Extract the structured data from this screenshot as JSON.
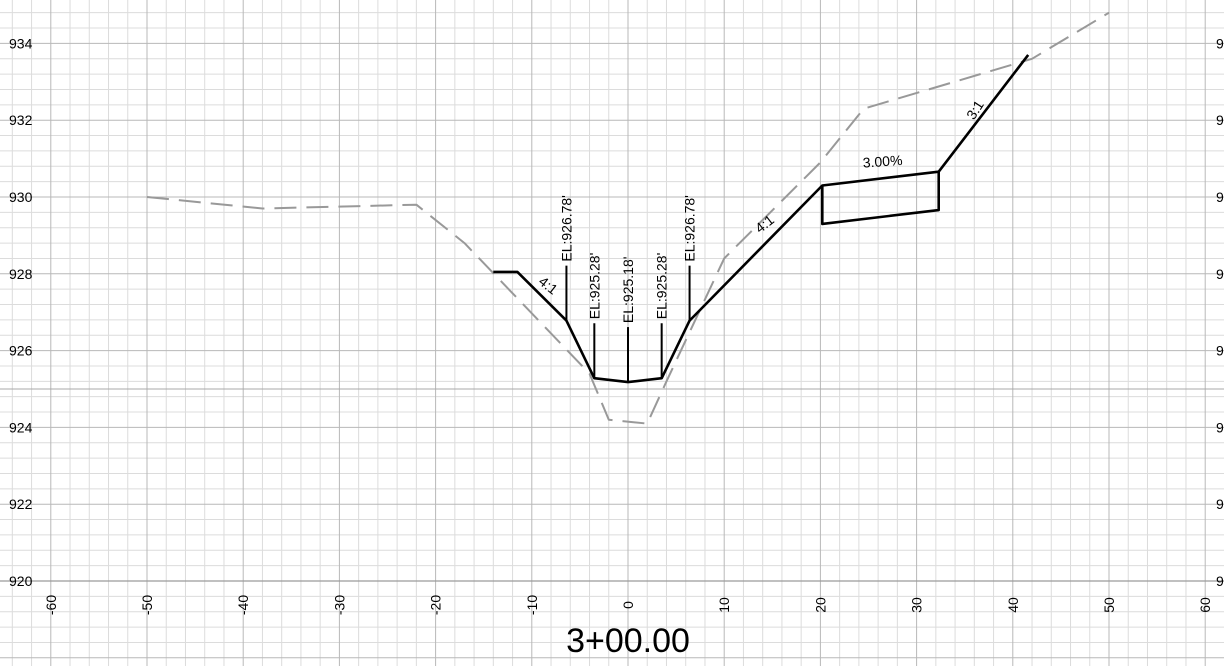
{
  "title": "3+00.00",
  "y_ticks": [
    "934",
    "932",
    "930",
    "928",
    "926",
    "924",
    "922",
    "920"
  ],
  "y_ticks_right_partial": [
    "9",
    "9",
    "9",
    "9",
    "9",
    "9",
    "9",
    "9"
  ],
  "x_ticks": [
    "-60",
    "-50",
    "-40",
    "-30",
    "-20",
    "-10",
    "0",
    "10",
    "20",
    "30",
    "40",
    "50",
    "60"
  ],
  "chart_data": {
    "type": "line",
    "xlim": [
      -60,
      60
    ],
    "ylim": [
      920,
      935
    ],
    "grid": true,
    "series": [
      {
        "line_style": "dashed",
        "color": "#999999",
        "points": [
          [
            -50,
            930
          ],
          [
            -38,
            929.7
          ],
          [
            -22,
            929.8
          ],
          [
            -17,
            928.8
          ],
          [
            -4,
            925.4
          ],
          [
            -2,
            924.2
          ],
          [
            2,
            924.1
          ],
          [
            4,
            925.2
          ],
          [
            10,
            928.4
          ],
          [
            20,
            930.9
          ],
          [
            24.5,
            932.3
          ],
          [
            42,
            933.6
          ],
          [
            50,
            934.8
          ]
        ]
      },
      {
        "line_style": "solid",
        "color": "#000000",
        "points": [
          [
            -14,
            928.05
          ],
          [
            -11.5,
            928.05
          ],
          [
            -6.4,
            926.78
          ],
          [
            -3.5,
            925.28
          ],
          [
            0,
            925.18
          ],
          [
            3.5,
            925.28
          ],
          [
            6.4,
            926.78
          ],
          [
            20.2,
            930.3
          ],
          [
            32.3,
            930.66
          ],
          [
            41.6,
            933.7
          ]
        ]
      },
      {
        "line_style": "solid",
        "color": "#000000",
        "points": [
          [
            20.2,
            930.3
          ],
          [
            20.2,
            929.3
          ],
          [
            32.3,
            929.66
          ],
          [
            32.3,
            930.66
          ]
        ]
      }
    ],
    "annotations": {
      "elevations": [
        {
          "x": -6.4,
          "text": "EL:926.78'"
        },
        {
          "x": -3.5,
          "text": "EL:925.28'"
        },
        {
          "x": 0,
          "text": "EL:925.18'"
        },
        {
          "x": 3.5,
          "text": "EL:925.28'"
        },
        {
          "x": 6.4,
          "text": "EL:926.78'"
        }
      ],
      "slopes": [
        {
          "text": "4:1"
        },
        {
          "text": "4:1"
        },
        {
          "text": "3:1"
        },
        {
          "text": "3.00%"
        }
      ]
    }
  }
}
